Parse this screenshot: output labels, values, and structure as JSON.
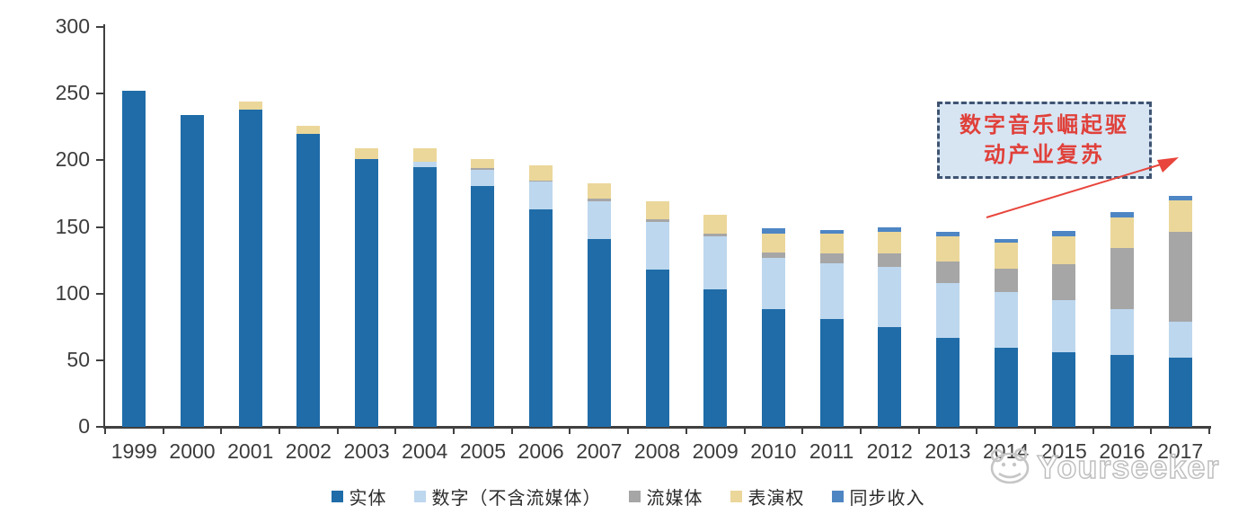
{
  "chart_data": {
    "type": "bar",
    "stacked": true,
    "categories": [
      "1999",
      "2000",
      "2001",
      "2002",
      "2003",
      "2004",
      "2005",
      "2006",
      "2007",
      "2008",
      "2009",
      "2010",
      "2011",
      "2012",
      "2013",
      "2014",
      "2015",
      "2016",
      "2017"
    ],
    "series": [
      {
        "name": "实体",
        "color": "#1f6ca8",
        "values": [
          252,
          234,
          238,
          220,
          201,
          195,
          181,
          163,
          141,
          118,
          103,
          88,
          81,
          75,
          67,
          59,
          56,
          54,
          52
        ]
      },
      {
        "name": "数字（不含流媒体）",
        "color": "#bdd7ee",
        "values": [
          0,
          0,
          0,
          0,
          0,
          4,
          12,
          21,
          28,
          36,
          40,
          39,
          42,
          45,
          41,
          42,
          39,
          34,
          27
        ]
      },
      {
        "name": "流媒体",
        "color": "#a6a6a6",
        "values": [
          0,
          0,
          0,
          0,
          0,
          0,
          1,
          1,
          2,
          2,
          2,
          4,
          7,
          10,
          16,
          18,
          27,
          46,
          67
        ]
      },
      {
        "name": "表演权",
        "color": "#ebd79a",
        "values": [
          0,
          0,
          6,
          6,
          8,
          10,
          7,
          11,
          12,
          13,
          14,
          14,
          15,
          16,
          19,
          19,
          21,
          23,
          24
        ]
      },
      {
        "name": "同步收入",
        "color": "#4e86c4",
        "values": [
          0,
          0,
          0,
          0,
          0,
          0,
          0,
          0,
          0,
          0,
          0,
          4,
          3,
          4,
          3,
          3,
          4,
          4,
          3
        ]
      }
    ],
    "ylim": [
      0,
      300
    ],
    "yticks": [
      0,
      50,
      100,
      150,
      200,
      250,
      300
    ],
    "grid": false,
    "legend_position": "bottom",
    "xlabel": "",
    "ylabel": ""
  },
  "annotation": {
    "lines": [
      "数字音乐崛起驱",
      "动产业复苏"
    ],
    "full_text": "数字音乐崛起驱动产业复苏",
    "box_fill": "#d7e5f3",
    "border_color": "#3f5472",
    "text_color": "#e0403a",
    "arrow_color": "#e8453c"
  },
  "watermark": {
    "text": "Yourseeker",
    "logo": "yourseeker-mascot-icon",
    "color": "#bfbfbf"
  },
  "axis": {
    "line_color": "#404040",
    "label_color": "#3c3c3c"
  }
}
